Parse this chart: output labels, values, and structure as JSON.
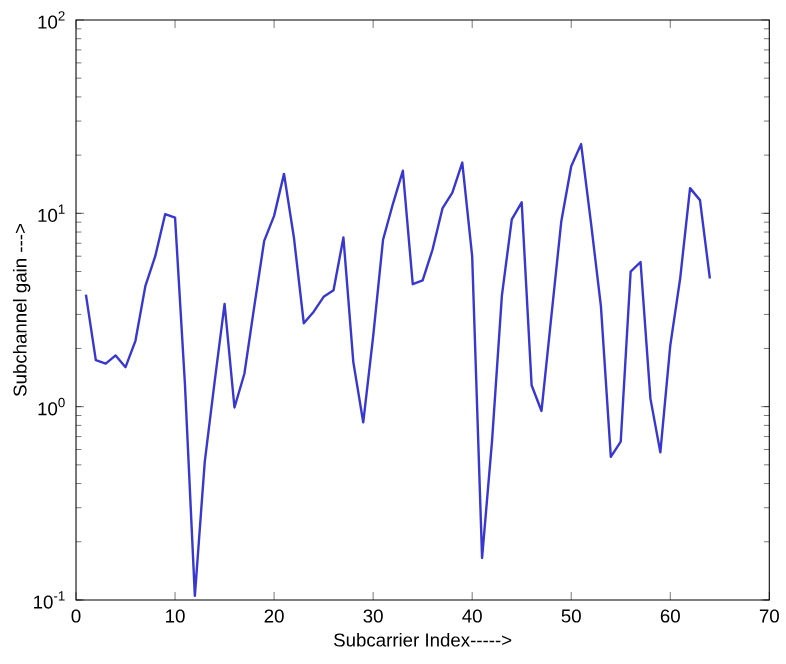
{
  "chart_data": {
    "type": "line",
    "xlabel": "Subcarrier Index----->",
    "ylabel": "Subchannel gain --->",
    "log": "y",
    "grid": false,
    "marker": "none",
    "line_style": "solid",
    "xlim": [
      0,
      70
    ],
    "xticks": [
      0,
      10,
      20,
      30,
      40,
      50,
      60,
      70
    ],
    "ylim": [
      0.1,
      100
    ],
    "yticks": [
      {
        "value": 0.1,
        "label": "10$^{-1}$"
      },
      {
        "value": 1,
        "label": "10$^{0}$"
      },
      {
        "value": 10,
        "label": "10$^{1}$"
      },
      {
        "value": 100,
        "label": "10$^{2}$"
      }
    ],
    "x": [
      1,
      2,
      3,
      4,
      5,
      6,
      7,
      8,
      9,
      10,
      11,
      12,
      13,
      14,
      15,
      16,
      17,
      18,
      19,
      20,
      21,
      22,
      23,
      24,
      25,
      26,
      27,
      28,
      29,
      30,
      31,
      32,
      33,
      34,
      35,
      36,
      37,
      38,
      39,
      40,
      41,
      42,
      43,
      44,
      45,
      46,
      47,
      48,
      49,
      50,
      51,
      52,
      53,
      54,
      55,
      56,
      57,
      58,
      59,
      60,
      61,
      62,
      63,
      64
    ],
    "series": [
      {
        "color": "#3838d0",
        "values": [
          3.8,
          1.74,
          1.67,
          1.84,
          1.6,
          2.19,
          4.2,
          6.0,
          9.9,
          9.5,
          1.3,
          0.105,
          0.52,
          1.35,
          3.4,
          0.99,
          1.48,
          3.3,
          7.2,
          9.7,
          16,
          7.5,
          2.7,
          3.1,
          3.7,
          4.0,
          7.5,
          1.7,
          0.83,
          2.3,
          7.3,
          11.2,
          16.6,
          4.3,
          4.5,
          6.5,
          10.6,
          12.8,
          18.3,
          6.0,
          0.165,
          0.66,
          3.75,
          9.3,
          11.4,
          1.29,
          0.95,
          2.95,
          9.1,
          17.5,
          22.8,
          8.9,
          3.3,
          0.55,
          0.66,
          5.0,
          5.6,
          1.1,
          0.58,
          2.07,
          4.6,
          13.5,
          11.7,
          4.6
        ]
      }
    ]
  }
}
